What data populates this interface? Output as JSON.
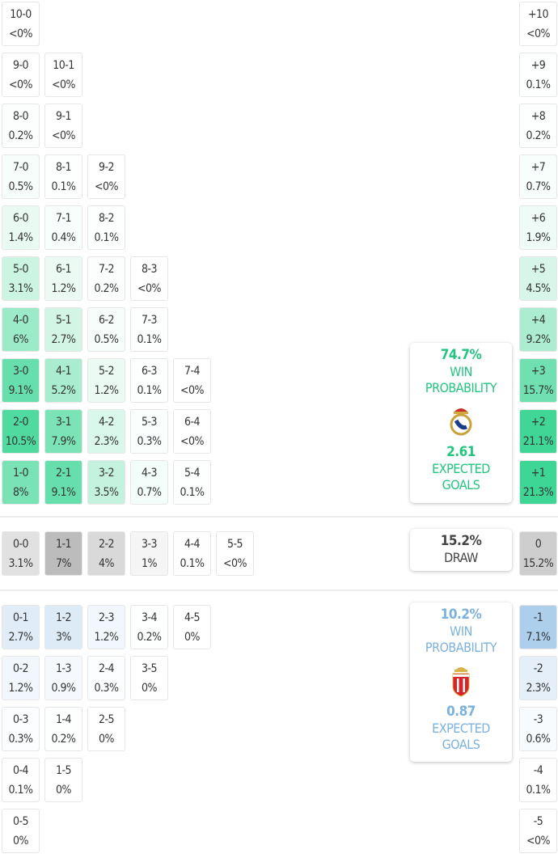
{
  "colors": {
    "home": "#2dd28c",
    "away": "#6fa9dc",
    "draw": "#9a9a9a",
    "home_text": "#22c47e",
    "away_text": "#7bb1de",
    "draw_text": "#444444"
  },
  "home_rows": [
    [
      [
        "10-0",
        "<0%"
      ]
    ],
    [
      [
        "9-0",
        "<0%"
      ],
      [
        "10-1",
        "<0%"
      ]
    ],
    [
      [
        "8-0",
        "0.2%"
      ],
      [
        "9-1",
        "<0%"
      ]
    ],
    [
      [
        "7-0",
        "0.5%"
      ],
      [
        "8-1",
        "0.1%"
      ],
      [
        "9-2",
        "<0%"
      ]
    ],
    [
      [
        "6-0",
        "1.4%"
      ],
      [
        "7-1",
        "0.4%"
      ],
      [
        "8-2",
        "0.1%"
      ]
    ],
    [
      [
        "5-0",
        "3.1%"
      ],
      [
        "6-1",
        "1.2%"
      ],
      [
        "7-2",
        "0.2%"
      ],
      [
        "8-3",
        "<0%"
      ]
    ],
    [
      [
        "4-0",
        "6%"
      ],
      [
        "5-1",
        "2.7%"
      ],
      [
        "6-2",
        "0.5%"
      ],
      [
        "7-3",
        "0.1%"
      ]
    ],
    [
      [
        "3-0",
        "9.1%"
      ],
      [
        "4-1",
        "5.2%"
      ],
      [
        "5-2",
        "1.2%"
      ],
      [
        "6-3",
        "0.1%"
      ],
      [
        "7-4",
        "<0%"
      ]
    ],
    [
      [
        "2-0",
        "10.5%"
      ],
      [
        "3-1",
        "7.9%"
      ],
      [
        "4-2",
        "2.3%"
      ],
      [
        "5-3",
        "0.3%"
      ],
      [
        "6-4",
        "<0%"
      ]
    ],
    [
      [
        "1-0",
        "8%"
      ],
      [
        "2-1",
        "9.1%"
      ],
      [
        "3-2",
        "3.5%"
      ],
      [
        "4-3",
        "0.7%"
      ],
      [
        "5-4",
        "0.1%"
      ]
    ]
  ],
  "draw_row": [
    [
      "0-0",
      "3.1%"
    ],
    [
      "1-1",
      "7%"
    ],
    [
      "2-2",
      "4%"
    ],
    [
      "3-3",
      "1%"
    ],
    [
      "4-4",
      "0.1%"
    ],
    [
      "5-5",
      "<0%"
    ]
  ],
  "away_rows": [
    [
      [
        "0-1",
        "2.7%"
      ],
      [
        "1-2",
        "3%"
      ],
      [
        "2-3",
        "1.2%"
      ],
      [
        "3-4",
        "0.2%"
      ],
      [
        "4-5",
        "0%"
      ]
    ],
    [
      [
        "0-2",
        "1.2%"
      ],
      [
        "1-3",
        "0.9%"
      ],
      [
        "2-4",
        "0.3%"
      ],
      [
        "3-5",
        "0%"
      ]
    ],
    [
      [
        "0-3",
        "0.3%"
      ],
      [
        "1-4",
        "0.2%"
      ],
      [
        "2-5",
        "0%"
      ]
    ],
    [
      [
        "0-4",
        "0.1%"
      ],
      [
        "1-5",
        "0%"
      ]
    ],
    [
      [
        "0-5",
        "0%"
      ]
    ]
  ],
  "home_margins": [
    [
      "+10",
      "<0%"
    ],
    [
      "+9",
      "0.1%"
    ],
    [
      "+8",
      "0.2%"
    ],
    [
      "+7",
      "0.7%"
    ],
    [
      "+6",
      "1.9%"
    ],
    [
      "+5",
      "4.5%"
    ],
    [
      "+4",
      "9.2%"
    ],
    [
      "+3",
      "15.7%"
    ],
    [
      "+2",
      "21.1%"
    ],
    [
      "+1",
      "21.3%"
    ]
  ],
  "draw_margin": [
    "0",
    "15.2%"
  ],
  "away_margins": [
    [
      "-1",
      "7.1%"
    ],
    [
      "-2",
      "2.3%"
    ],
    [
      "-3",
      "0.6%"
    ],
    [
      "-4",
      "0.1%"
    ],
    [
      "-5",
      "<0%"
    ]
  ],
  "home_panel": {
    "win_pct": "74.7%",
    "win_label_1": "WIN",
    "win_label_2": "PROBABILITY",
    "xg": "2.61",
    "xg_label_1": "EXPECTED",
    "xg_label_2": "GOALS",
    "crest": "real-madrid-crest"
  },
  "draw_panel": {
    "pct": "15.2%",
    "label": "DRAW"
  },
  "away_panel": {
    "win_pct": "10.2%",
    "win_label_1": "WIN",
    "win_label_2": "PROBABILITY",
    "xg": "0.87",
    "xg_label_1": "EXPECTED",
    "xg_label_2": "GOALS",
    "crest": "monaco-crest"
  }
}
